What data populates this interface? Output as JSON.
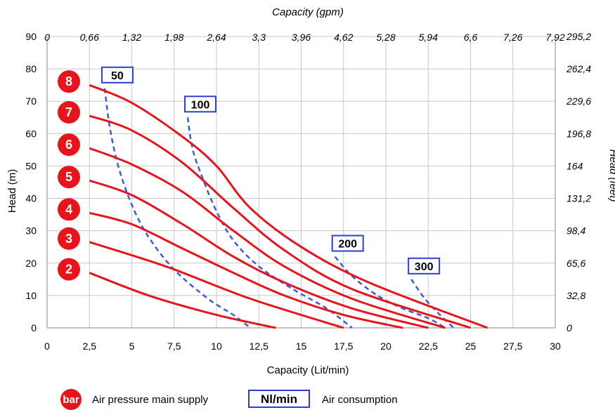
{
  "chart_data": {
    "type": "line",
    "title": "",
    "xlabel": "Capacity (Lit/min)",
    "ylabel": "Head (m)",
    "x2label": "Capacity (gpm)",
    "y2label": "Head (feet)",
    "xlim": [
      0,
      30
    ],
    "ylim": [
      0,
      90
    ],
    "grid": true,
    "x_ticks": [
      "0",
      "2,5",
      "5",
      "7,5",
      "10",
      "12,5",
      "15",
      "17,5",
      "20",
      "22,5",
      "25",
      "27,5",
      "30"
    ],
    "y_ticks": [
      "0",
      "10",
      "20",
      "30",
      "40",
      "50",
      "60",
      "70",
      "80",
      "90"
    ],
    "x2_ticks": [
      "0",
      "0,66",
      "1,32",
      "1,98",
      "2,64",
      "3,3",
      "3,96",
      "4,62",
      "5,28",
      "5,94",
      "6,6",
      "7,26",
      "7,92"
    ],
    "y2_ticks": [
      "0",
      "32,8",
      "65,6",
      "98,4",
      "131,2",
      "164",
      "196,8",
      "229,6",
      "262,4",
      "295,2"
    ],
    "pressure_series": [
      {
        "name": "2",
        "color": "#e8141c",
        "x": [
          2.5,
          6,
          10,
          13.5
        ],
        "y": [
          17,
          10,
          4,
          0
        ]
      },
      {
        "name": "3",
        "color": "#e8141c",
        "x": [
          2.5,
          7,
          12,
          17.5
        ],
        "y": [
          26.5,
          19,
          9,
          0
        ]
      },
      {
        "name": "4",
        "color": "#e8141c",
        "x": [
          2.5,
          5,
          8,
          11,
          14,
          17.5,
          21
        ],
        "y": [
          35.5,
          32,
          24.5,
          17,
          10,
          4,
          0
        ]
      },
      {
        "name": "5",
        "color": "#e8141c",
        "x": [
          2.5,
          5,
          8,
          11,
          14,
          18,
          22.5
        ],
        "y": [
          45.5,
          41,
          32,
          22,
          14,
          6,
          0
        ]
      },
      {
        "name": "6",
        "color": "#e8141c",
        "x": [
          2.5,
          5,
          8,
          11,
          14,
          18,
          23.5
        ],
        "y": [
          55.5,
          50.5,
          42,
          30,
          19,
          9,
          0
        ]
      },
      {
        "name": "7",
        "color": "#e8141c",
        "x": [
          2.5,
          5,
          8,
          11,
          14,
          18,
          25
        ],
        "y": [
          65.5,
          61,
          51,
          37,
          24,
          12,
          0
        ]
      },
      {
        "name": "8",
        "color": "#e8141c",
        "x": [
          2.5,
          5,
          8,
          10,
          12,
          15,
          19,
          26
        ],
        "y": [
          75,
          69.5,
          59,
          50,
          37,
          25,
          14,
          0
        ]
      }
    ],
    "air_series": [
      {
        "name": "50",
        "color": "#3b5bdb",
        "x": [
          3.4,
          3.7,
          4.2,
          5,
          6,
          7.5,
          9.5,
          11,
          12
        ],
        "y": [
          74,
          62,
          50,
          38,
          28,
          18,
          9,
          4,
          0
        ]
      },
      {
        "name": "100",
        "color": "#3b5bdb",
        "x": [
          8.3,
          8.6,
          9.2,
          10,
          11,
          12.5,
          14.5,
          16.5,
          18
        ],
        "y": [
          65,
          55,
          46,
          36,
          27,
          19,
          12,
          6,
          0
        ]
      },
      {
        "name": "200",
        "color": "#3b5bdb",
        "x": [
          17,
          18,
          19.5,
          21,
          22.5,
          23.5
        ],
        "y": [
          22,
          16,
          10,
          6,
          3,
          0
        ]
      },
      {
        "name": "300",
        "color": "#3b5bdb",
        "x": [
          21.5,
          22.3,
          23.2,
          24
        ],
        "y": [
          15,
          9,
          4,
          0
        ]
      }
    ],
    "legend": {
      "badge_label": "bar",
      "badge_text": "Air pressure main supply",
      "box_label": "Nl/min",
      "box_text": "Air consumption"
    },
    "colors": {
      "pressure": "#e8141c",
      "air": "#3b5bdb",
      "grid": "#c8c8c8"
    }
  }
}
